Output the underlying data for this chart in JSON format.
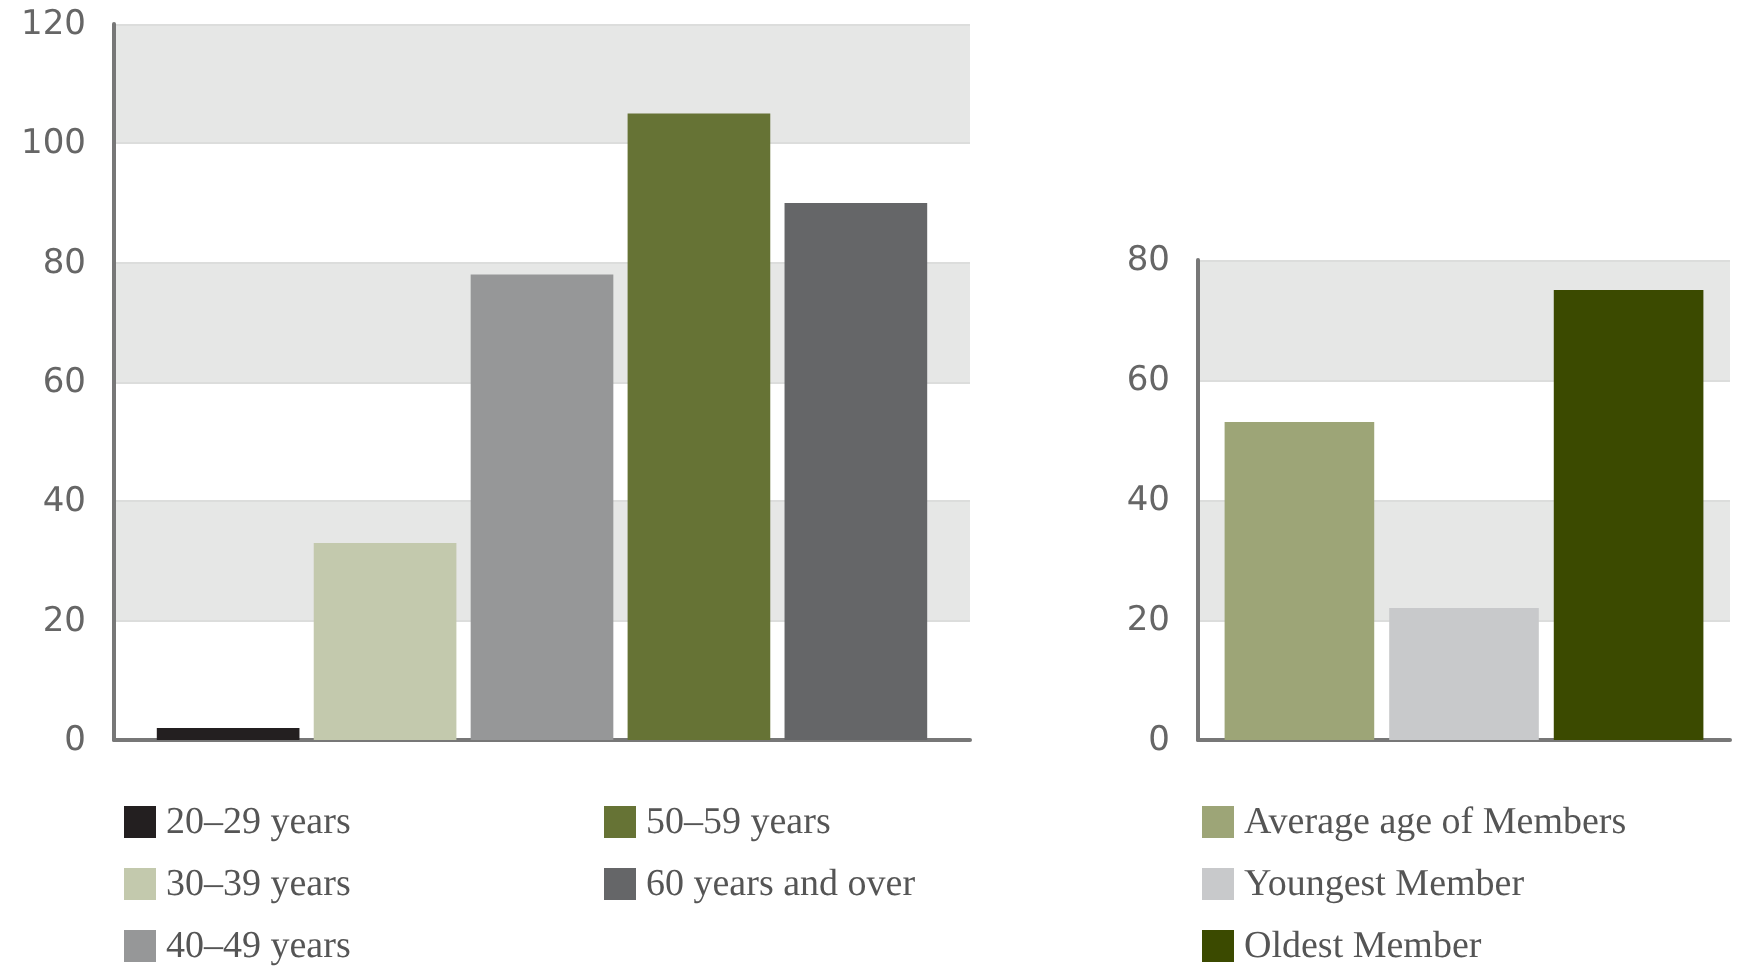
{
  "chart_data": [
    {
      "type": "bar",
      "categories": [
        null
      ],
      "ylim": [
        0,
        120
      ],
      "yticks": [
        0,
        20,
        40,
        60,
        80,
        100,
        120
      ],
      "grid": "y",
      "legend": "bottom",
      "series": [
        {
          "name": "20–29 years",
          "color": "#231f20",
          "values": [
            2
          ]
        },
        {
          "name": "30–39 years",
          "color": "#c3c9ad",
          "values": [
            33
          ]
        },
        {
          "name": "40–49 years",
          "color": "#969798",
          "values": [
            78
          ]
        },
        {
          "name": "50–59 years",
          "color": "#667335",
          "values": [
            105
          ]
        },
        {
          "name": "60 years and over",
          "color": "#656668",
          "values": [
            90
          ]
        }
      ]
    },
    {
      "type": "bar",
      "categories": [
        null
      ],
      "ylim": [
        0,
        80
      ],
      "yticks": [
        0,
        20,
        40,
        60,
        80
      ],
      "grid": "y",
      "legend": "bottom",
      "series": [
        {
          "name": "Average age of Members",
          "color": "#9da577",
          "values": [
            53
          ]
        },
        {
          "name": "Youngest Member",
          "color": "#c8c9cb",
          "values": [
            22
          ]
        },
        {
          "name": "Oldest Member",
          "color": "#3b4a00",
          "values": [
            75
          ]
        }
      ]
    }
  ]
}
